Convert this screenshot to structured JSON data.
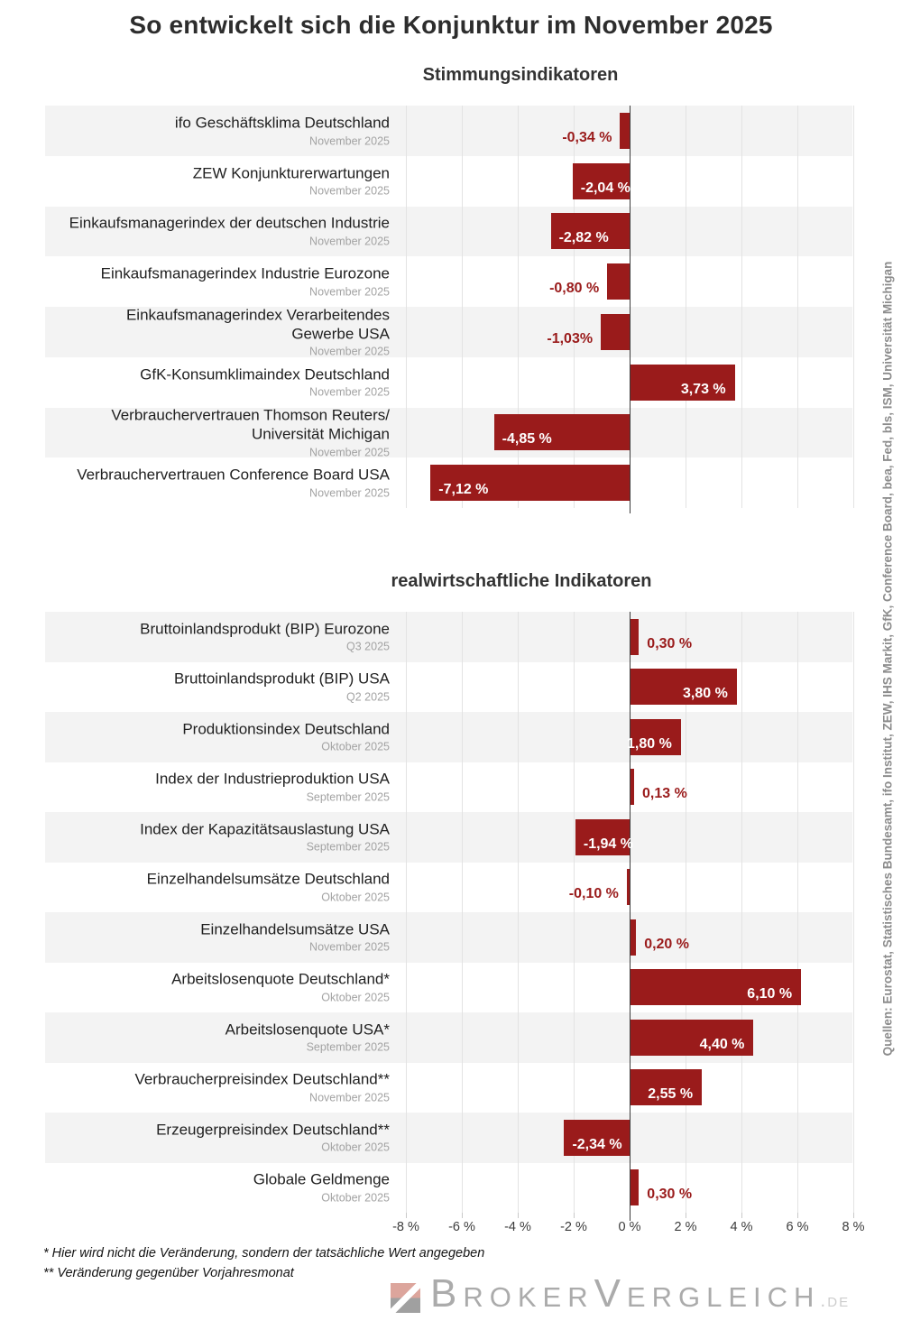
{
  "page": {
    "title": "So entwickelt sich die Konjunktur im November 2025",
    "footnotes": [
      "* Hier wird nicht die Veränderung, sondern der tatsächliche Wert angegeben",
      "** Veränderung gegenüber Vorjahresmonat"
    ],
    "source_note": "Quellen: Eurostat, Statistisches Bundesamt, ifo Institut, ZEW, IHS Markit, GfK, Conference Board, bea, Fed, bls, ISM, Universität Michigan",
    "logo": {
      "brand": "BrokerVergleich",
      "tld": ".de"
    }
  },
  "colors": {
    "bar": "#9a1b1b",
    "value_label_outside": "#9a1b1b",
    "value_label_inside": "#ffffff",
    "row_alt_background": "#f3f3f3",
    "gridline": "#e3e3e3",
    "zero_line": "#3b3b3b",
    "logo_salmon": "#dca59c",
    "logo_gray": "#a0a0a0"
  },
  "chart_data": [
    {
      "type": "bar",
      "orientation": "horizontal",
      "title": "Stimmungsindikatoren",
      "unit": "%",
      "axis_labels_visible": false,
      "x_axis": {
        "min": -8,
        "max": 8,
        "step": 2,
        "tick_labels": [
          "-8 %",
          "-6 %",
          "-4 %",
          "-2 %",
          "0 %",
          "2 %",
          "4 %",
          "6 %",
          "8 %"
        ]
      },
      "rows": [
        {
          "label": "ifo Geschäftsklima Deutschland",
          "period": "November 2025",
          "value": -0.34,
          "value_label": "-0,34 %",
          "value_label_position": "outside"
        },
        {
          "label": "ZEW Konjunkturerwartungen",
          "period": "November 2025",
          "value": -2.04,
          "value_label": "-2,04 %",
          "value_label_position": "inside"
        },
        {
          "label": "Einkaufsmanagerindex der deutschen Industrie",
          "period": "November 2025",
          "value": -2.82,
          "value_label": "-2,82 %",
          "value_label_position": "inside"
        },
        {
          "label": "Einkaufsmanagerindex Industrie Eurozone",
          "period": "November 2025",
          "value": -0.8,
          "value_label": "-0,80 %",
          "value_label_position": "outside"
        },
        {
          "label": "Einkaufsmanagerindex Verarbeitendes\nGewerbe USA",
          "period": "November 2025",
          "value": -1.03,
          "value_label": "-1,03%",
          "value_label_position": "outside"
        },
        {
          "label": "GfK-Konsumklimaindex Deutschland",
          "period": "November 2025",
          "value": 3.73,
          "value_label": "3,73 %",
          "value_label_position": "inside"
        },
        {
          "label": "Verbrauchervertrauen Thomson Reuters/\nUniversität Michigan",
          "period": "November 2025",
          "value": -4.85,
          "value_label": "-4,85 %",
          "value_label_position": "inside"
        },
        {
          "label": "Verbrauchervertrauen Conference Board USA",
          "period": "November 2025",
          "value": -7.12,
          "value_label": "-7,12 %",
          "value_label_position": "inside"
        }
      ]
    },
    {
      "type": "bar",
      "orientation": "horizontal",
      "title": "realwirtschaftliche Indikatoren",
      "unit": "%",
      "axis_labels_visible": true,
      "x_axis": {
        "min": -8,
        "max": 8,
        "step": 2,
        "tick_labels": [
          "-8 %",
          "-6 %",
          "-4 %",
          "-2 %",
          "0 %",
          "2 %",
          "4 %",
          "6 %",
          "8 %"
        ]
      },
      "rows": [
        {
          "label": "Bruttoinlandsprodukt (BIP) Eurozone",
          "period": "Q3 2025",
          "value": 0.3,
          "value_label": "0,30 %",
          "value_label_position": "outside"
        },
        {
          "label": "Bruttoinlandsprodukt (BIP) USA",
          "period": "Q2 2025",
          "value": 3.8,
          "value_label": "3,80 %",
          "value_label_position": "inside"
        },
        {
          "label": "Produktionsindex Deutschland",
          "period": "Oktober 2025",
          "value": 1.8,
          "value_label": "1,80 %",
          "value_label_position": "inside"
        },
        {
          "label": "Index der Industrieproduktion USA",
          "period": "September 2025",
          "value": 0.13,
          "value_label": "0,13 %",
          "value_label_position": "outside"
        },
        {
          "label": "Index der Kapazitätsauslastung USA",
          "period": "September 2025",
          "value": -1.94,
          "value_label": "-1,94 %",
          "value_label_position": "inside"
        },
        {
          "label": "Einzelhandelsumsätze Deutschland",
          "period": "Oktober 2025",
          "value": -0.1,
          "value_label": "-0,10 %",
          "value_label_position": "outside"
        },
        {
          "label": "Einzelhandelsumsätze USA",
          "period": "November 2025",
          "value": 0.2,
          "value_label": "0,20 %",
          "value_label_position": "outside"
        },
        {
          "label": "Arbeitslosenquote Deutschland*",
          "period": "Oktober 2025",
          "value": 6.1,
          "value_label": "6,10 %",
          "value_label_position": "inside"
        },
        {
          "label": "Arbeitslosenquote USA*",
          "period": "September 2025",
          "value": 4.4,
          "value_label": "4,40 %",
          "value_label_position": "inside"
        },
        {
          "label": "Verbraucherpreisindex Deutschland**",
          "period": "November 2025",
          "value": 2.55,
          "value_label": "2,55 %",
          "value_label_position": "inside"
        },
        {
          "label": "Erzeugerpreisindex Deutschland**",
          "period": "Oktober 2025",
          "value": -2.34,
          "value_label": "-2,34 %",
          "value_label_position": "inside"
        },
        {
          "label": "Globale Geldmenge",
          "period": "Oktober 2025",
          "value": 0.3,
          "value_label": "0,30 %",
          "value_label_position": "outside"
        }
      ]
    }
  ]
}
